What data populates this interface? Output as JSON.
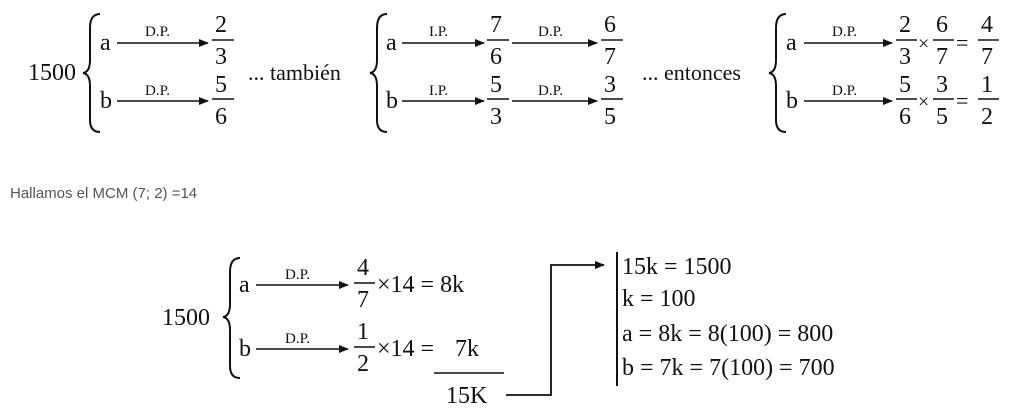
{
  "block1": {
    "total": "1500",
    "a_var": "a",
    "a_label": "D.P.",
    "a_num": "2",
    "a_den": "3",
    "b_var": "b",
    "b_label": "D.P.",
    "b_num": "5",
    "b_den": "6"
  },
  "connector1": "... también",
  "block2": {
    "a_var": "a",
    "a_label1": "I.P.",
    "a_num1": "7",
    "a_den1": "6",
    "a_label2": "D.P.",
    "a_num2": "6",
    "a_den2": "7",
    "b_var": "b",
    "b_label1": "I.P.",
    "b_num1": "5",
    "b_den1": "3",
    "b_label2": "D.P.",
    "b_num2": "3",
    "b_den2": "5"
  },
  "connector2": "... entonces",
  "block3": {
    "a_var": "a",
    "a_label": "D.P.",
    "a_f1_num": "2",
    "a_f1_den": "3",
    "a_f2_num": "6",
    "a_f2_den": "7",
    "a_r_num": "4",
    "a_r_den": "7",
    "b_var": "b",
    "b_label": "D.P.",
    "b_f1_num": "5",
    "b_f1_den": "6",
    "b_f2_num": "3",
    "b_f2_den": "5",
    "b_r_num": "1",
    "b_r_den": "2",
    "times": "×",
    "equals": "="
  },
  "mcm_text": "Hallamos el MCM (7; 2) =14",
  "block4": {
    "total": "1500",
    "a_var": "a",
    "a_label": "D.P.",
    "a_num": "4",
    "a_den": "7",
    "a_expr": "×14 = 8k",
    "b_var": "b",
    "b_label": "D.P.",
    "b_num": "1",
    "b_den": "2",
    "b_expr": "×14 = ",
    "b_result": "7k",
    "sum": "15K"
  },
  "results": [
    "15k = 1500",
    "k = 100",
    "a = 8k = 8(100) = 800",
    "b = 7k = 7(100) = 700"
  ]
}
